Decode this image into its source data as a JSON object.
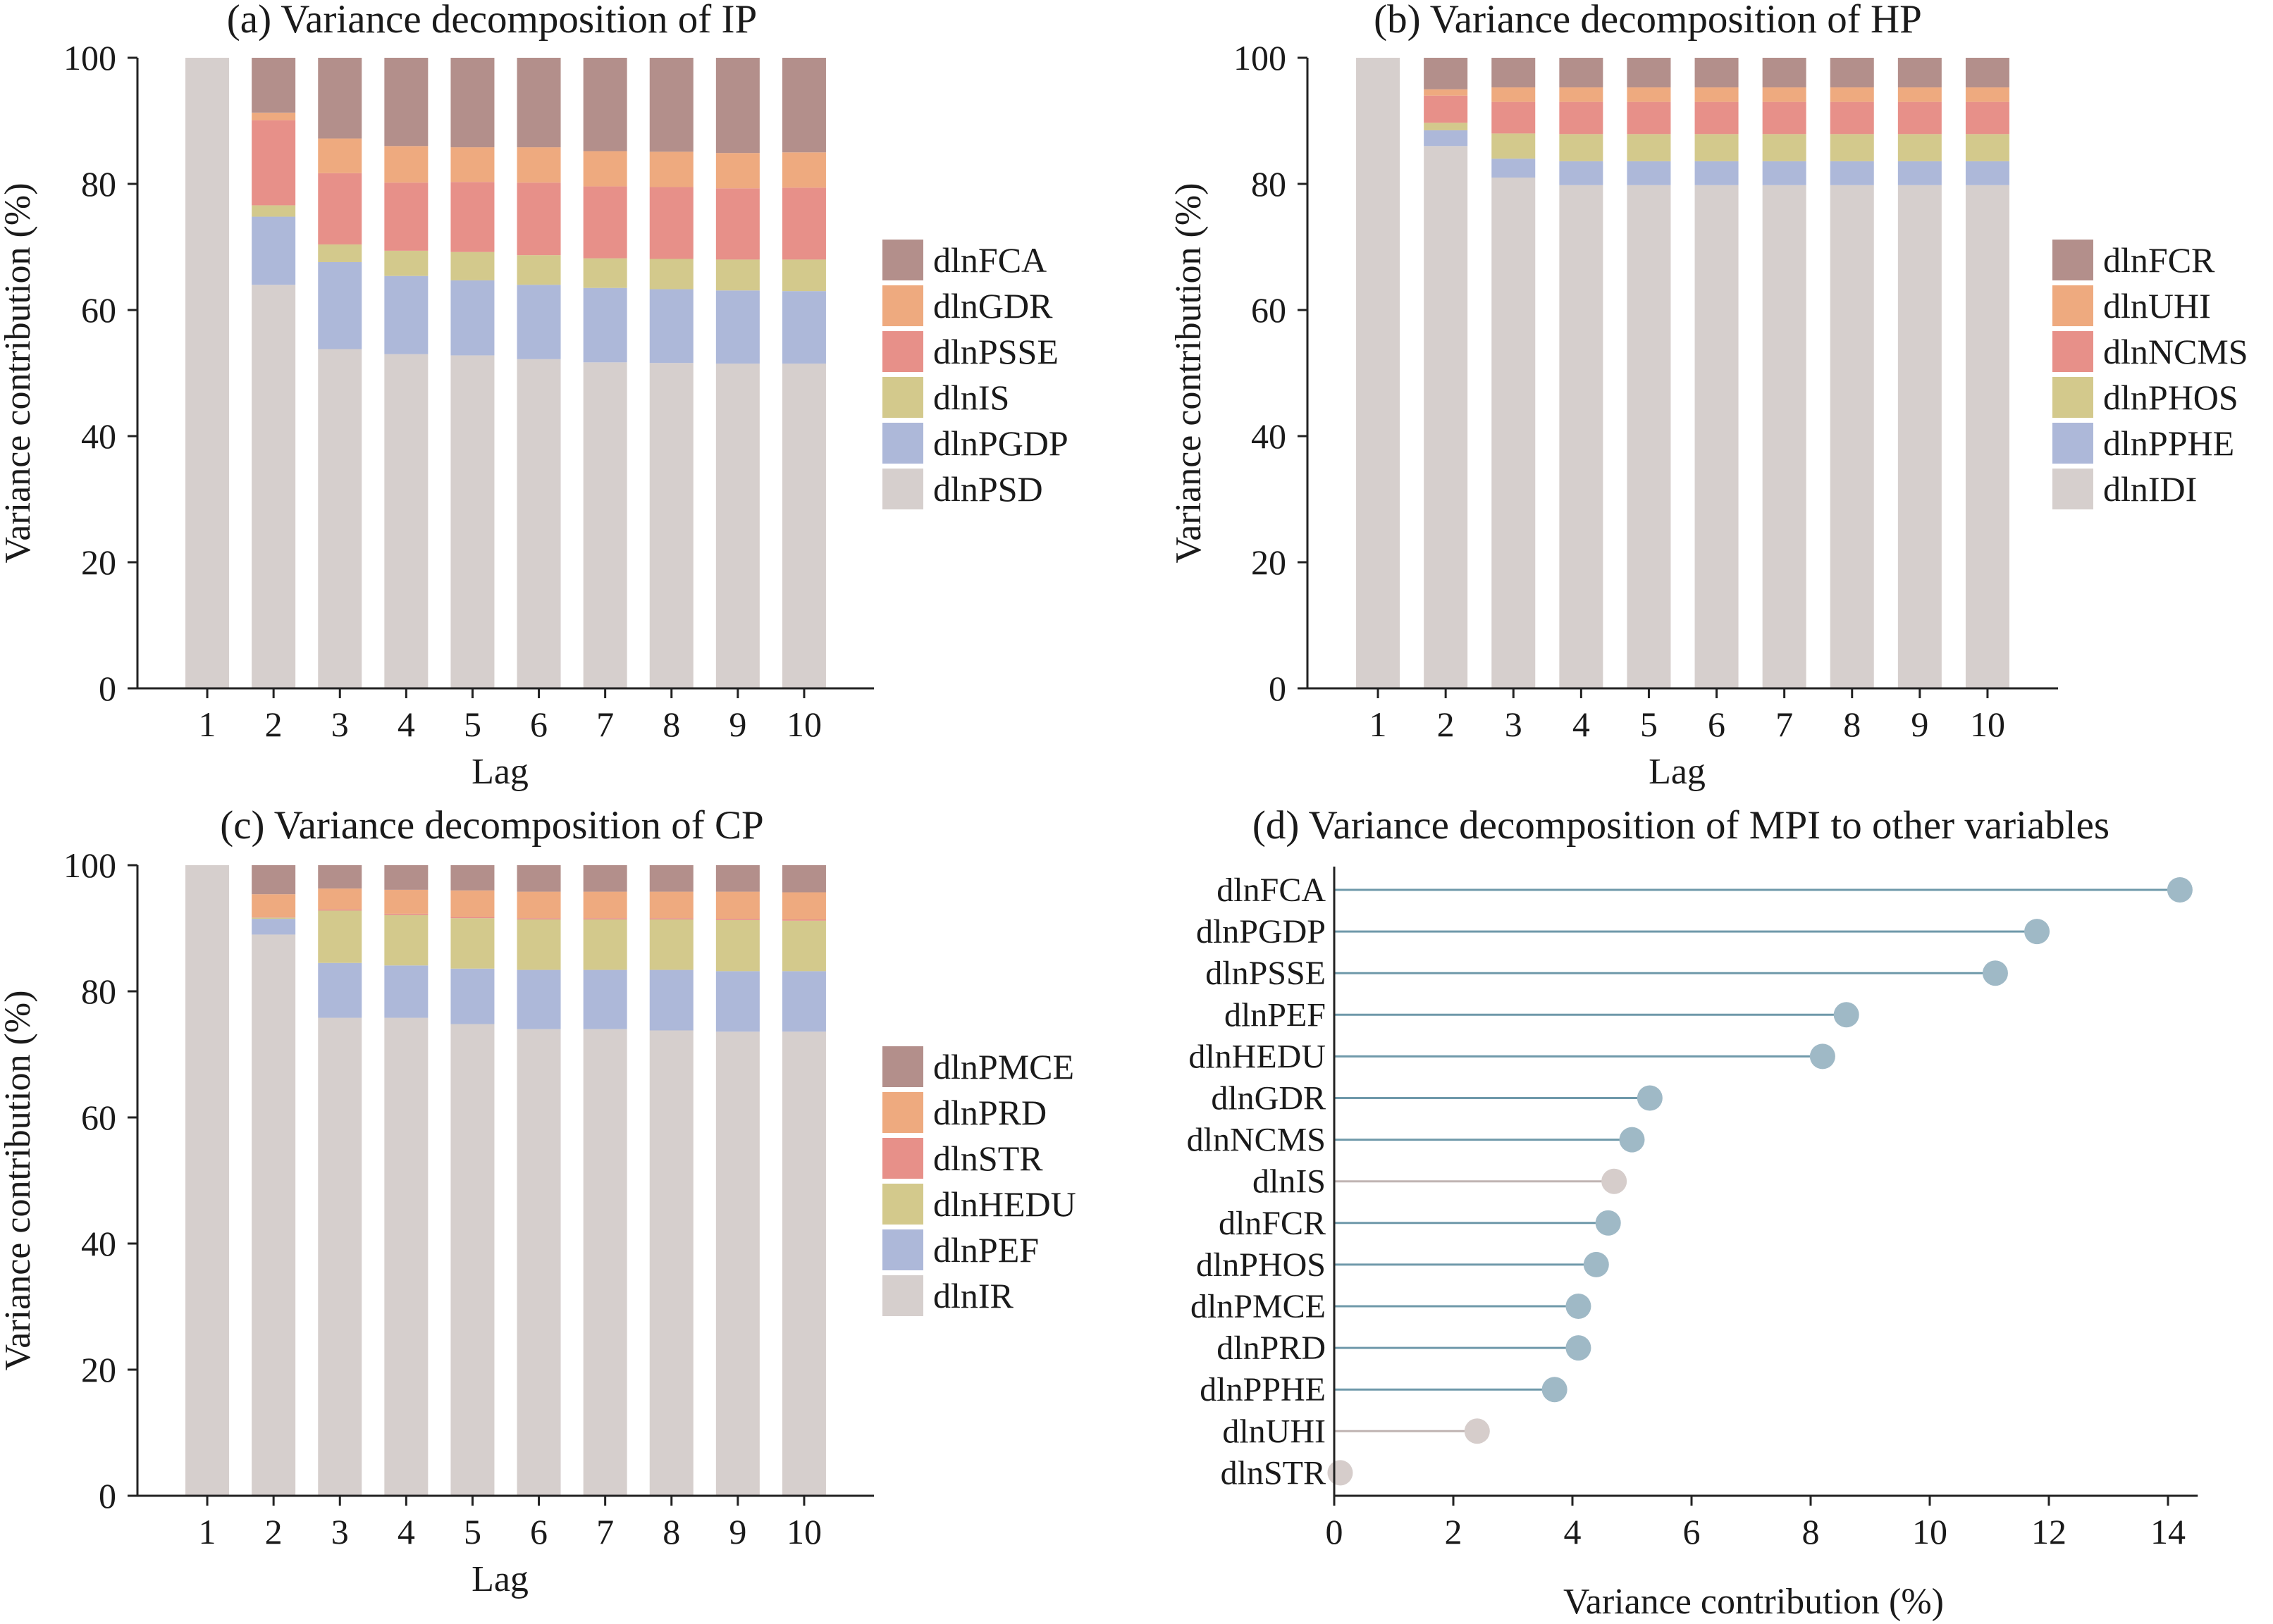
{
  "colors": {
    "mauve": "#b38f8b",
    "orange": "#eeaa7f",
    "salmon": "#e79089",
    "olive": "#d3c98c",
    "blue": "#adb8d9",
    "grey": "#d6cfcd",
    "lollipop_blue": "#6f99aa",
    "lollipop_blue_fill": "#9fb9c6",
    "lollipop_grey": "#c0b4b2",
    "lollipop_grey_fill": "#d6cdcb",
    "axis": "#222222"
  },
  "chart_data": [
    {
      "type": "bar",
      "stacked": true,
      "title": "(a) Variance decomposition of IP",
      "xlabel": "Lag",
      "ylabel": "Variance contribution (%)",
      "ylim": [
        0,
        100
      ],
      "yticks": [
        0,
        20,
        40,
        60,
        80,
        100
      ],
      "categories": [
        "1",
        "2",
        "3",
        "4",
        "5",
        "6",
        "7",
        "8",
        "9",
        "10"
      ],
      "legend_position": "right",
      "series": [
        {
          "name": "dlnPSD",
          "color": "grey",
          "values": [
            100,
            64.0,
            53.8,
            53.0,
            52.8,
            52.2,
            51.7,
            51.6,
            51.5,
            51.5
          ]
        },
        {
          "name": "dlnPGDP",
          "color": "blue",
          "values": [
            0,
            10.8,
            13.8,
            12.4,
            11.9,
            11.8,
            11.8,
            11.7,
            11.6,
            11.5
          ]
        },
        {
          "name": "dlnIS",
          "color": "olive",
          "values": [
            0,
            1.8,
            2.8,
            4.0,
            4.5,
            4.7,
            4.7,
            4.8,
            4.9,
            5.0
          ]
        },
        {
          "name": "dlnPSSE",
          "color": "salmon",
          "values": [
            0,
            13.5,
            11.3,
            10.8,
            11.1,
            11.5,
            11.4,
            11.4,
            11.3,
            11.4
          ]
        },
        {
          "name": "dlnGDR",
          "color": "orange",
          "values": [
            0,
            1.2,
            5.5,
            5.8,
            5.5,
            5.6,
            5.6,
            5.6,
            5.6,
            5.6
          ]
        },
        {
          "name": "dlnFCA",
          "color": "mauve",
          "values": [
            0,
            8.7,
            12.8,
            14.0,
            14.2,
            14.2,
            14.8,
            14.9,
            15.1,
            15.0
          ]
        }
      ]
    },
    {
      "type": "bar",
      "stacked": true,
      "title": "(b) Variance decomposition of HP",
      "xlabel": "Lag",
      "ylabel": "Variance contribution (%)",
      "ylim": [
        0,
        100
      ],
      "yticks": [
        0,
        20,
        40,
        60,
        80,
        100
      ],
      "categories": [
        "1",
        "2",
        "3",
        "4",
        "5",
        "6",
        "7",
        "8",
        "9",
        "10"
      ],
      "legend_position": "right",
      "series": [
        {
          "name": "dlnIDI",
          "color": "grey",
          "values": [
            100,
            86.0,
            81.0,
            79.8,
            79.8,
            79.8,
            79.8,
            79.8,
            79.8,
            79.8
          ]
        },
        {
          "name": "dlnPPHE",
          "color": "blue",
          "values": [
            0,
            2.5,
            3.0,
            3.8,
            3.8,
            3.8,
            3.8,
            3.8,
            3.8,
            3.8
          ]
        },
        {
          "name": "dlnPHOS",
          "color": "olive",
          "values": [
            0,
            1.2,
            4.0,
            4.3,
            4.3,
            4.3,
            4.3,
            4.3,
            4.3,
            4.3
          ]
        },
        {
          "name": "dlnNCMS",
          "color": "salmon",
          "values": [
            0,
            4.3,
            5.0,
            5.1,
            5.1,
            5.1,
            5.1,
            5.1,
            5.1,
            5.1
          ]
        },
        {
          "name": "dlnUHI",
          "color": "orange",
          "values": [
            0,
            1.0,
            2.3,
            2.3,
            2.3,
            2.3,
            2.3,
            2.3,
            2.3,
            2.3
          ]
        },
        {
          "name": "dlnFCR",
          "color": "mauve",
          "values": [
            0,
            5.0,
            4.7,
            4.7,
            4.7,
            4.7,
            4.7,
            4.7,
            4.7,
            4.7
          ]
        }
      ]
    },
    {
      "type": "bar",
      "stacked": true,
      "title": "(c) Variance decomposition of CP",
      "xlabel": "Lag",
      "ylabel": "Variance contribution (%)",
      "ylim": [
        0,
        100
      ],
      "yticks": [
        0,
        20,
        40,
        60,
        80,
        100
      ],
      "categories": [
        "1",
        "2",
        "3",
        "4",
        "5",
        "6",
        "7",
        "8",
        "9",
        "10"
      ],
      "legend_position": "right",
      "series": [
        {
          "name": "dlnIR",
          "color": "grey",
          "values": [
            100,
            89.0,
            75.8,
            75.8,
            74.8,
            74.0,
            74.0,
            73.8,
            73.6,
            73.6
          ]
        },
        {
          "name": "dlnPEF",
          "color": "blue",
          "values": [
            0,
            2.5,
            8.7,
            8.3,
            8.8,
            9.4,
            9.4,
            9.6,
            9.6,
            9.6
          ]
        },
        {
          "name": "dlnHEDU",
          "color": "olive",
          "values": [
            0,
            0.2,
            8.3,
            8.0,
            8.0,
            8.0,
            8.0,
            8.0,
            8.1,
            8.0
          ]
        },
        {
          "name": "dlnSTR",
          "color": "salmon",
          "values": [
            0,
            0.1,
            0.2,
            0.2,
            0.2,
            0.2,
            0.2,
            0.2,
            0.2,
            0.2
          ]
        },
        {
          "name": "dlnPRD",
          "color": "orange",
          "values": [
            0,
            3.6,
            3.3,
            3.8,
            4.2,
            4.2,
            4.2,
            4.2,
            4.3,
            4.3
          ]
        },
        {
          "name": "dlnPMCE",
          "color": "mauve",
          "values": [
            0,
            4.6,
            3.7,
            3.9,
            4.0,
            4.2,
            4.2,
            4.2,
            4.2,
            4.3
          ]
        }
      ]
    },
    {
      "type": "lollipop",
      "title": "(d) Variance decomposition of MPI to other variables",
      "xlabel": "Variance contribution (%)",
      "ylabel": "",
      "xlim": [
        0,
        14.5
      ],
      "xticks": [
        0,
        2,
        4,
        6,
        8,
        10,
        12,
        14
      ],
      "items": [
        {
          "name": "dlnFCA",
          "value": 14.2,
          "color": "blue"
        },
        {
          "name": "dlnPGDP",
          "value": 11.8,
          "color": "blue"
        },
        {
          "name": "dlnPSSE",
          "value": 11.1,
          "color": "blue"
        },
        {
          "name": "dlnPEF",
          "value": 8.6,
          "color": "blue"
        },
        {
          "name": "dlnHEDU",
          "value": 8.2,
          "color": "blue"
        },
        {
          "name": "dlnGDR",
          "value": 5.3,
          "color": "blue"
        },
        {
          "name": "dlnNCMS",
          "value": 5.0,
          "color": "blue"
        },
        {
          "name": "dlnIS",
          "value": 4.7,
          "color": "grey"
        },
        {
          "name": "dlnFCR",
          "value": 4.6,
          "color": "blue"
        },
        {
          "name": "dlnPHOS",
          "value": 4.4,
          "color": "blue"
        },
        {
          "name": "dlnPMCE",
          "value": 4.1,
          "color": "blue"
        },
        {
          "name": "dlnPRD",
          "value": 4.1,
          "color": "blue"
        },
        {
          "name": "dlnPPHE",
          "value": 3.7,
          "color": "blue"
        },
        {
          "name": "dlnUHI",
          "value": 2.4,
          "color": "grey"
        },
        {
          "name": "dlnSTR",
          "value": 0.1,
          "color": "grey"
        }
      ]
    }
  ]
}
